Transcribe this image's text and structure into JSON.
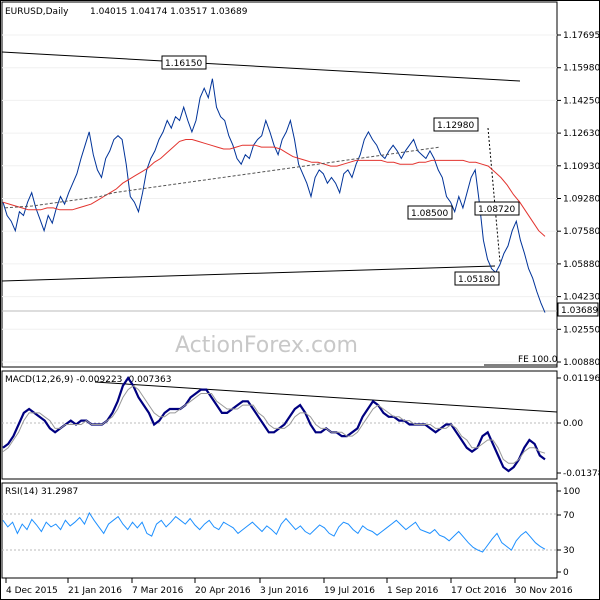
{
  "header": {
    "symbol_label": "EURUSD,Daily",
    "ohlc": "1.04015 1.04174 1.03517 1.03689"
  },
  "watermark": "ActionForex.com",
  "chart_data": [
    {
      "type": "line",
      "panel": "price",
      "title": "EURUSD,Daily",
      "ylim": [
        1.0088,
        1.1856
      ],
      "y_ticks": [
        "1.17695",
        "1.15980",
        "1.14250",
        "1.12630",
        "1.10930",
        "1.09280",
        "1.07580",
        "1.05880",
        "1.04230",
        "1.02550",
        "1.00880"
      ],
      "x_ticks": [
        "4 Dec 2015",
        "21 Jan 2016",
        "7 Mar 2016",
        "20 Apr 2016",
        "3 Jun 2016",
        "19 Jul 2016",
        "1 Sep 2016",
        "17 Oct 2016",
        "30 Nov 2016"
      ],
      "current_price_label": "1.03689",
      "fib_label": "FE 100.0",
      "annotations": [
        {
          "text": "1.16150",
          "x": "20 Apr 2016",
          "y": 1.1615
        },
        {
          "text": "1.12980",
          "x": "17 Oct 2016",
          "y": 1.1298
        },
        {
          "text": "1.08500",
          "x": "17 Oct 2016",
          "y": 1.085
        },
        {
          "text": "1.08720",
          "x": "30 Nov 2016",
          "y": 1.0872
        },
        {
          "text": "1.05180",
          "x": "30 Nov 2016",
          "y": 1.0518
        }
      ],
      "series": [
        {
          "values": [
            1.095,
            1.088,
            1.085,
            1.08,
            1.09,
            1.088,
            1.095,
            1.1,
            1.092,
            1.086,
            1.08,
            1.088,
            1.084,
            1.092,
            1.098,
            1.094,
            1.1,
            1.105,
            1.11,
            1.118,
            1.125,
            1.132,
            1.12,
            1.112,
            1.108,
            1.118,
            1.122,
            1.128,
            1.13,
            1.128,
            1.115,
            1.098,
            1.095,
            1.09,
            1.1,
            1.112,
            1.118,
            1.122,
            1.128,
            1.132,
            1.138,
            1.134,
            1.14,
            1.138,
            1.145,
            1.138,
            1.132,
            1.138,
            1.15,
            1.155,
            1.15,
            1.16,
            1.145,
            1.14,
            1.138,
            1.13,
            1.125,
            1.118,
            1.115,
            1.12,
            1.118,
            1.125,
            1.128,
            1.13,
            1.138,
            1.132,
            1.125,
            1.12,
            1.128,
            1.132,
            1.138,
            1.128,
            1.115,
            1.11,
            1.105,
            1.098,
            1.108,
            1.112,
            1.11,
            1.105,
            1.108,
            1.105,
            1.1,
            1.11,
            1.112,
            1.108,
            1.115,
            1.12,
            1.128,
            1.132,
            1.128,
            1.125,
            1.12,
            1.118,
            1.122,
            1.125,
            1.122,
            1.118,
            1.122,
            1.125,
            1.128,
            1.122,
            1.12,
            1.118,
            1.122,
            1.118,
            1.112,
            1.108,
            1.098,
            1.095,
            1.09,
            1.098,
            1.092,
            1.1,
            1.108,
            1.112,
            1.095,
            1.075,
            1.065,
            1.06,
            1.058,
            1.062,
            1.068,
            1.072,
            1.08,
            1.085,
            1.075,
            1.068,
            1.06,
            1.055,
            1.048,
            1.042,
            1.0369
          ]
        },
        {
          "values": [
            1.095,
            1.094,
            1.093,
            1.092,
            1.091,
            1.091,
            1.091,
            1.092,
            1.092,
            1.091,
            1.091,
            1.091,
            1.092,
            1.093,
            1.094,
            1.096,
            1.098,
            1.1,
            1.102,
            1.105,
            1.107,
            1.109,
            1.111,
            1.113,
            1.116,
            1.118,
            1.121,
            1.124,
            1.127,
            1.128,
            1.128,
            1.127,
            1.126,
            1.125,
            1.124,
            1.123,
            1.123,
            1.124,
            1.125,
            1.125,
            1.125,
            1.124,
            1.124,
            1.124,
            1.123,
            1.121,
            1.119,
            1.118,
            1.117,
            1.116,
            1.116,
            1.115,
            1.114,
            1.114,
            1.115,
            1.116,
            1.117,
            1.117,
            1.117,
            1.117,
            1.117,
            1.116,
            1.116,
            1.115,
            1.115,
            1.115,
            1.116,
            1.116,
            1.117,
            1.117,
            1.117,
            1.117,
            1.117,
            1.117,
            1.116,
            1.116,
            1.115,
            1.114,
            1.111,
            1.108,
            1.104,
            1.099,
            1.095,
            1.09,
            1.085,
            1.08,
            1.077
          ]
        },
        {
          "values": [
            1.092,
            1.0925,
            1.093,
            1.094,
            1.095,
            1.096,
            1.097,
            1.098,
            1.1,
            1.101,
            1.102,
            1.103,
            1.104,
            1.105,
            1.106,
            1.107,
            1.108,
            1.109,
            1.11,
            1.111,
            1.112,
            1.113,
            1.114,
            1.115,
            1.116,
            1.117,
            1.118,
            1.119,
            1.12,
            1.121,
            1.122,
            1.123,
            1.124
          ]
        }
      ]
    },
    {
      "type": "line",
      "panel": "macd",
      "title": "MACD(12,26,9) -0.009223 -0.007363",
      "ylim": [
        -0.0138,
        0.012
      ],
      "y_ticks": [
        "0.011962",
        "0.00",
        "-0.013788"
      ],
      "series": [
        {
          "values": [
            -0.006,
            -0.005,
            -0.003,
            0.0,
            0.003,
            0.004,
            0.003,
            0.002,
            0.001,
            -0.001,
            -0.002,
            -0.001,
            0.0,
            0.001,
            0.0,
            0.001,
            0.001,
            0.0,
            0.0,
            0.0,
            0.001,
            0.003,
            0.006,
            0.01,
            0.012,
            0.01,
            0.007,
            0.005,
            0.003,
            0.0,
            0.001,
            0.003,
            0.004,
            0.004,
            0.004,
            0.005,
            0.007,
            0.008,
            0.009,
            0.009,
            0.007,
            0.005,
            0.003,
            0.003,
            0.004,
            0.005,
            0.006,
            0.006,
            0.004,
            0.002,
            0.0,
            -0.002,
            -0.002,
            -0.001,
            0.0,
            0.002,
            0.004,
            0.005,
            0.003,
            0.0,
            -0.002,
            -0.002,
            -0.001,
            -0.002,
            -0.002,
            -0.003,
            -0.003,
            -0.002,
            -0.001,
            0.002,
            0.004,
            0.006,
            0.005,
            0.003,
            0.002,
            0.002,
            0.001,
            0.001,
            0.0,
            0.0,
            0.0,
            0.0,
            -0.001,
            -0.002,
            -0.001,
            0.0,
            0.0,
            -0.002,
            -0.004,
            -0.006,
            -0.007,
            -0.006,
            -0.003,
            -0.002,
            -0.005,
            -0.008,
            -0.011,
            -0.012,
            -0.011,
            -0.009,
            -0.006,
            -0.004,
            -0.005,
            -0.008,
            -0.009
          ]
        },
        {
          "values": [
            -0.007,
            -0.006,
            -0.004,
            -0.002,
            0.001,
            0.003,
            0.003,
            0.003,
            0.002,
            0.001,
            -0.001,
            -0.001,
            0.0,
            0.0,
            0.0,
            0.0,
            0.001,
            0.0,
            0.0,
            0.0,
            0.001,
            0.002,
            0.004,
            0.007,
            0.009,
            0.01,
            0.009,
            0.007,
            0.005,
            0.003,
            0.002,
            0.002,
            0.003,
            0.003,
            0.004,
            0.005,
            0.006,
            0.007,
            0.008,
            0.008,
            0.008,
            0.006,
            0.005,
            0.004,
            0.004,
            0.004,
            0.005,
            0.005,
            0.005,
            0.003,
            0.002,
            0.0,
            -0.001,
            -0.001,
            -0.001,
            0.0,
            0.002,
            0.003,
            0.003,
            0.002,
            0.0,
            -0.001,
            -0.001,
            -0.002,
            -0.002,
            -0.002,
            -0.003,
            -0.003,
            -0.002,
            0.0,
            0.002,
            0.004,
            0.005,
            0.004,
            0.003,
            0.002,
            0.002,
            0.001,
            0.001,
            0.0,
            0.0,
            0.0,
            0.0,
            -0.001,
            -0.001,
            -0.001,
            0.0,
            -0.001,
            -0.003,
            -0.004,
            -0.006,
            -0.006,
            -0.005,
            -0.004,
            -0.004,
            -0.006,
            -0.009,
            -0.01,
            -0.01,
            -0.009,
            -0.007,
            -0.006,
            -0.006,
            -0.007,
            -0.0074
          ]
        }
      ]
    },
    {
      "type": "line",
      "panel": "rsi",
      "title": "RSI(14) 31.2987",
      "ylim": [
        0,
        100
      ],
      "y_ticks": [
        "100",
        "70",
        "30",
        "0"
      ],
      "series": [
        {
          "values": [
            62,
            55,
            60,
            48,
            58,
            52,
            63,
            57,
            50,
            60,
            55,
            58,
            52,
            62,
            56,
            60,
            65,
            58,
            70,
            62,
            55,
            48,
            58,
            62,
            66,
            58,
            52,
            60,
            54,
            60,
            48,
            45,
            58,
            62,
            55,
            60,
            66,
            62,
            58,
            64,
            57,
            52,
            58,
            62,
            55,
            52,
            60,
            57,
            54,
            48,
            52,
            56,
            60,
            55,
            50,
            56,
            52,
            47,
            58,
            64,
            58,
            52,
            56,
            50,
            47,
            52,
            57,
            54,
            48,
            45,
            55,
            60,
            58,
            52,
            48,
            56,
            52,
            50,
            46,
            50,
            54,
            58,
            62,
            57,
            52,
            56,
            60,
            52,
            50,
            48,
            52,
            46,
            44,
            40,
            45,
            50,
            44,
            38,
            33,
            30,
            28,
            35,
            42,
            48,
            38,
            34,
            30,
            40,
            46,
            50,
            44,
            38,
            34,
            31
          ]
        }
      ]
    }
  ]
}
